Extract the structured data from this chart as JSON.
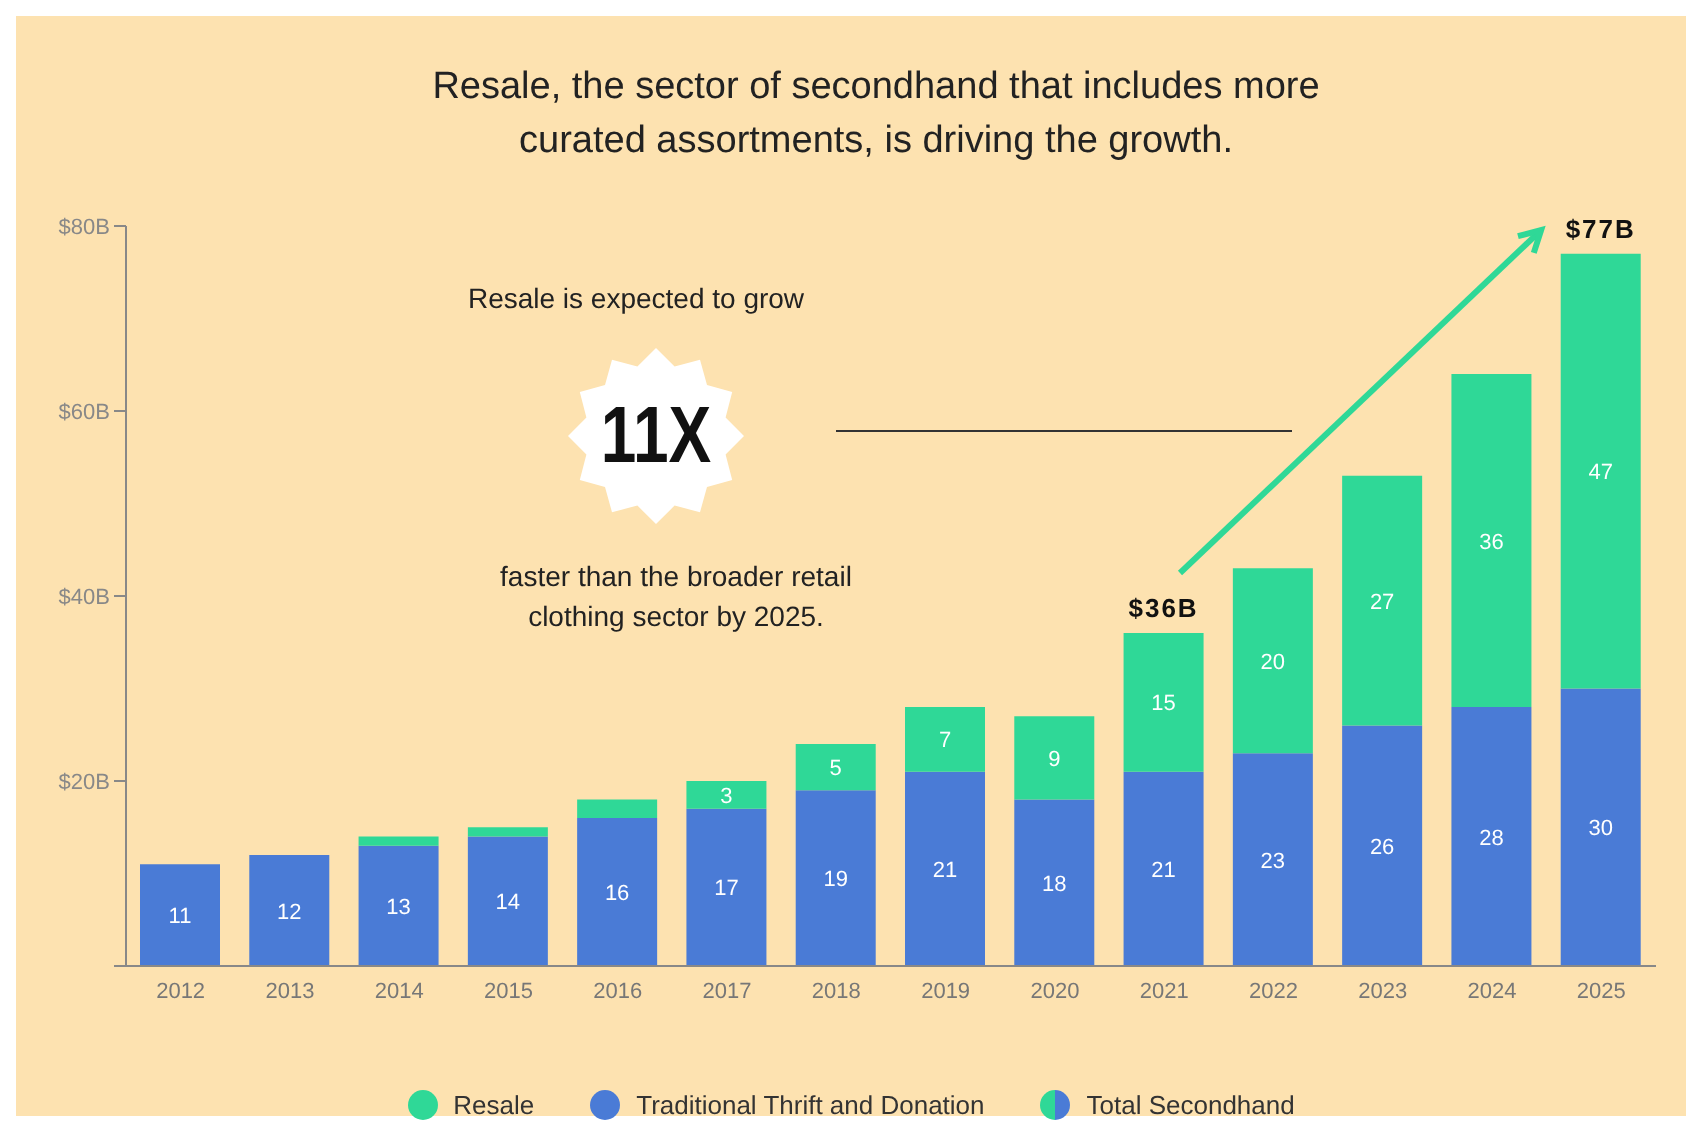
{
  "chart_data": {
    "type": "bar",
    "title": "Resale, the sector of secondhand that includes more curated assortments, is driving the growth.",
    "categories": [
      "2012",
      "2013",
      "2014",
      "2015",
      "2016",
      "2017",
      "2018",
      "2019",
      "2020",
      "2021",
      "2022",
      "2023",
      "2024",
      "2025"
    ],
    "stacked": true,
    "series": [
      {
        "name": "Traditional Thrift and Donation",
        "color": "#4a7bd6",
        "values": [
          11,
          12,
          13,
          14,
          16,
          17,
          19,
          21,
          18,
          21,
          23,
          26,
          28,
          30
        ],
        "value_labels": [
          "11",
          "12",
          "13",
          "14",
          "16",
          "17",
          "19",
          "21",
          "18",
          "21",
          "23",
          "26",
          "28",
          "30"
        ]
      },
      {
        "name": "Resale",
        "color": "#2fd897",
        "values": [
          0,
          0,
          1,
          1,
          2,
          3,
          5,
          7,
          9,
          15,
          20,
          27,
          36,
          47
        ],
        "value_labels": [
          null,
          null,
          null,
          null,
          null,
          "3",
          "5",
          "7",
          "9",
          "15",
          "20",
          "27",
          "36",
          "47"
        ]
      }
    ],
    "totals": [
      null,
      null,
      null,
      null,
      null,
      null,
      null,
      null,
      null,
      "$36B",
      null,
      null,
      null,
      "$77B"
    ],
    "ylim": [
      0,
      80
    ],
    "yticks": [
      {
        "value": 0,
        "label": null
      },
      {
        "value": 20,
        "label": "$20B"
      },
      {
        "value": 40,
        "label": "$40B"
      },
      {
        "value": 60,
        "label": "$60B"
      },
      {
        "value": 80,
        "label": "$80B"
      }
    ],
    "grid": false,
    "legend": "bottom",
    "annotations": [
      "Resale is expected to grow",
      "11X",
      "faster than the broader retail clothing sector by 2025.",
      "Total Secondhand"
    ]
  }
}
